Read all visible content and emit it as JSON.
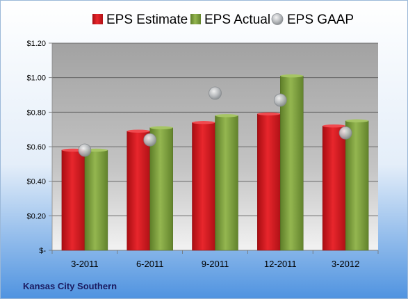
{
  "chart_data": {
    "type": "bar",
    "categories": [
      "3-2011",
      "6-2011",
      "9-2011",
      "12-2011",
      "3-2012"
    ],
    "series": [
      {
        "name": "EPS Estimate",
        "type": "bar",
        "color": "#d0171c",
        "values": [
          0.58,
          0.69,
          0.74,
          0.79,
          0.72
        ]
      },
      {
        "name": "EPS Actual",
        "type": "bar",
        "color": "#7a9c3c",
        "values": [
          0.58,
          0.71,
          0.78,
          1.01,
          0.75
        ]
      },
      {
        "name": "EPS GAAP",
        "type": "scatter",
        "color": "#b0b4b8",
        "values": [
          0.58,
          0.64,
          0.91,
          0.87,
          0.68
        ]
      }
    ],
    "ylim": [
      0,
      1.2
    ],
    "yticks": [
      0,
      0.2,
      0.4,
      0.6,
      0.8,
      1.0,
      1.2
    ],
    "ytick_labels": [
      "$-",
      "$0.20",
      "$0.40",
      "$0.60",
      "$0.80",
      "$1.00",
      "$1.20"
    ],
    "grid": true,
    "legend_position": "top"
  },
  "footer": {
    "company": "Kansas City Southern"
  },
  "colors": {
    "background_top": "#ffffff",
    "background_bottom": "#4a90e2",
    "plot_top": "#a8a8a8",
    "plot_bottom": "#ececec"
  }
}
